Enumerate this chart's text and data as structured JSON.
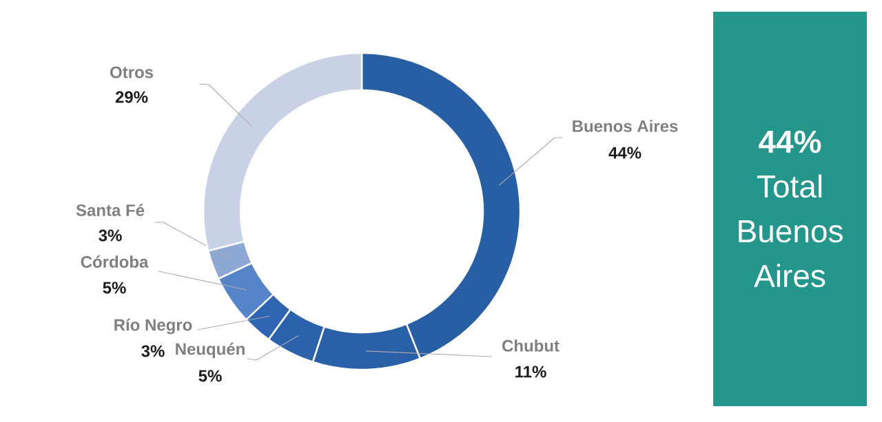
{
  "chart_data": [
    {
      "type": "donut",
      "categories": [
        "Buenos Aires",
        "Chubut",
        "Neuquén",
        "Río Negro",
        "Córdoba",
        "Santa Fé",
        "Otros"
      ],
      "values": [
        44,
        11,
        5,
        3,
        5,
        3,
        29
      ],
      "colors": [
        "#285EA4",
        "#2A60A8",
        "#2C62AC",
        "#2E64B2",
        "#5585C8",
        "#8EA8D6",
        "#C8D1E6"
      ],
      "value_labels": [
        "44%",
        "11%",
        "5%",
        "3%",
        "5%",
        "3%",
        "29%"
      ]
    },
    {
      "type": "other",
      "annotations": [
        "**44%** Total Buenos Aires"
      ]
    }
  ]
}
